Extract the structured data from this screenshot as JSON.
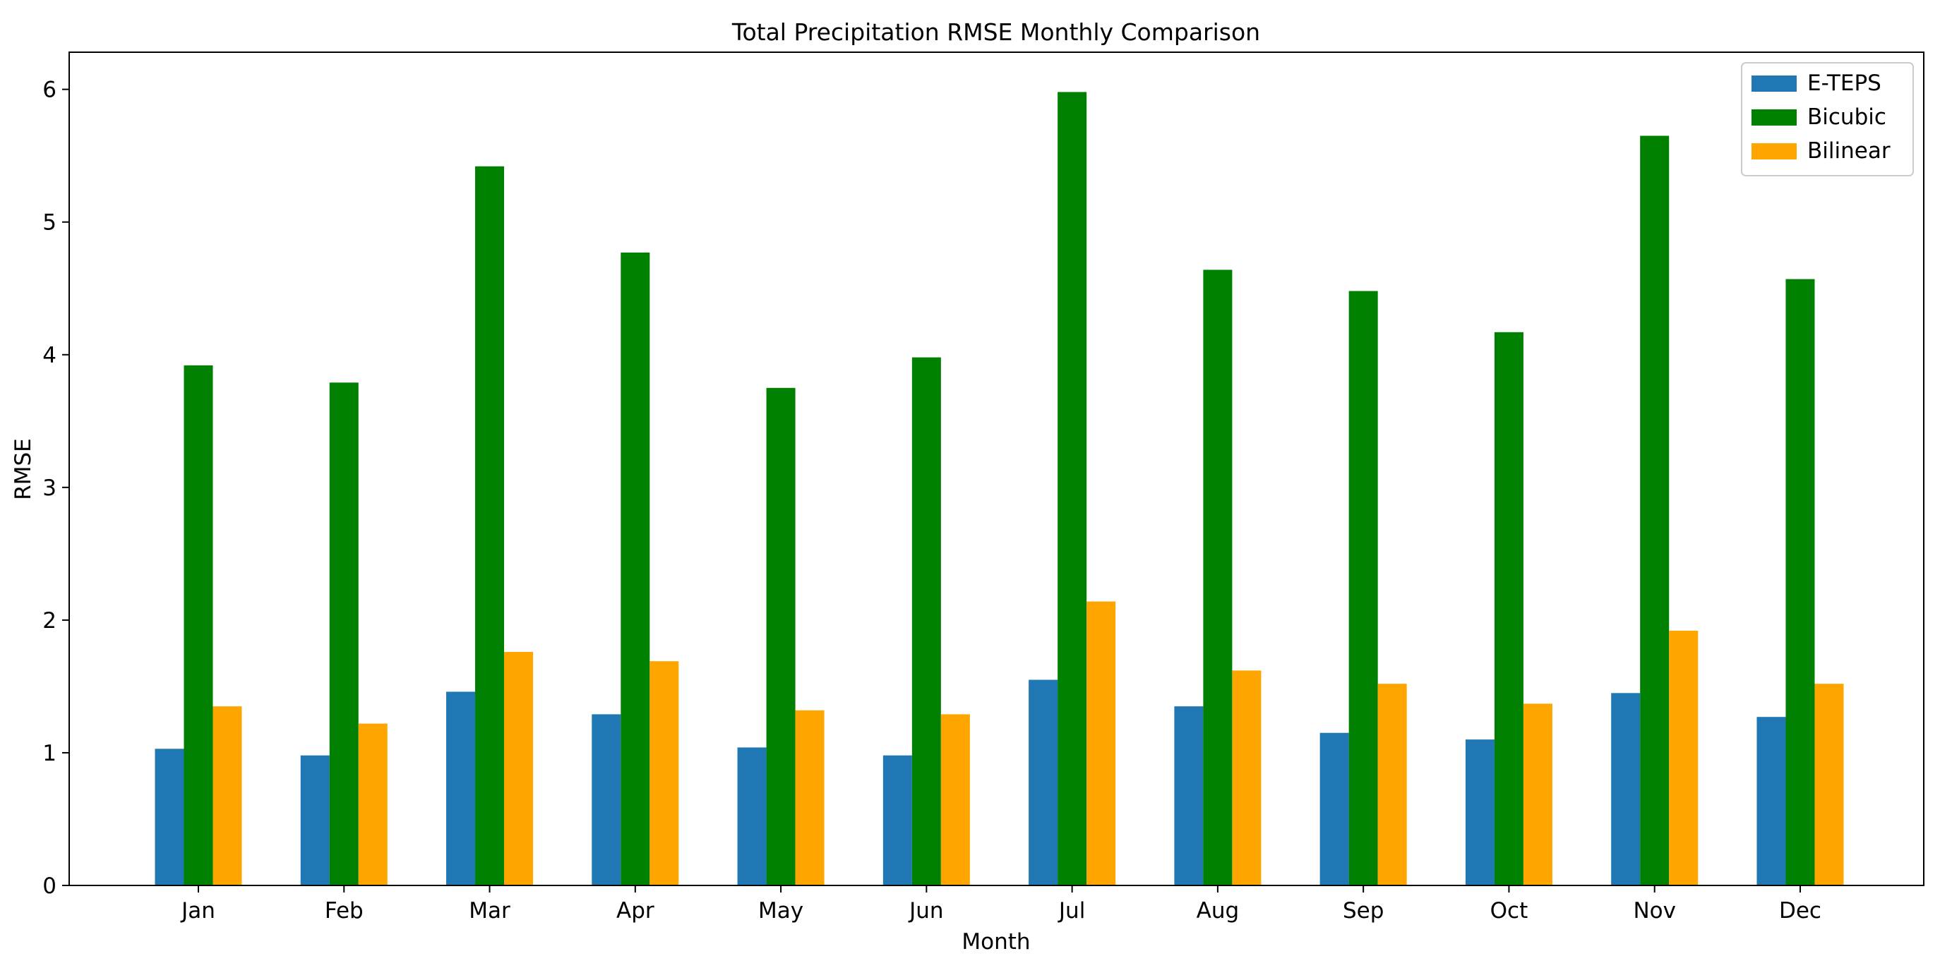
{
  "chart_data": {
    "type": "bar",
    "title": "Total Precipitation RMSE Monthly Comparison",
    "xlabel": "Month",
    "ylabel": "RMSE",
    "ylim": [
      0,
      6.28
    ],
    "yticks": [
      0,
      1,
      2,
      3,
      4,
      5,
      6
    ],
    "categories": [
      "Jan",
      "Feb",
      "Mar",
      "Apr",
      "May",
      "Jun",
      "Jul",
      "Aug",
      "Sep",
      "Oct",
      "Nov",
      "Dec"
    ],
    "legend_position": "top-right",
    "grid": false,
    "series": [
      {
        "name": "E-TEPS",
        "color": "#1f77b4",
        "values": [
          1.03,
          0.98,
          1.46,
          1.29,
          1.04,
          0.98,
          1.55,
          1.35,
          1.15,
          1.1,
          1.45,
          1.27
        ]
      },
      {
        "name": "Bicubic",
        "color": "#008000",
        "values": [
          3.92,
          3.79,
          5.42,
          4.77,
          3.75,
          3.98,
          5.98,
          4.64,
          4.48,
          4.17,
          5.65,
          4.57
        ]
      },
      {
        "name": "Bilinear",
        "color": "#ffa500",
        "values": [
          1.35,
          1.22,
          1.76,
          1.69,
          1.32,
          1.29,
          2.14,
          1.62,
          1.52,
          1.37,
          1.92,
          1.52
        ]
      }
    ]
  }
}
